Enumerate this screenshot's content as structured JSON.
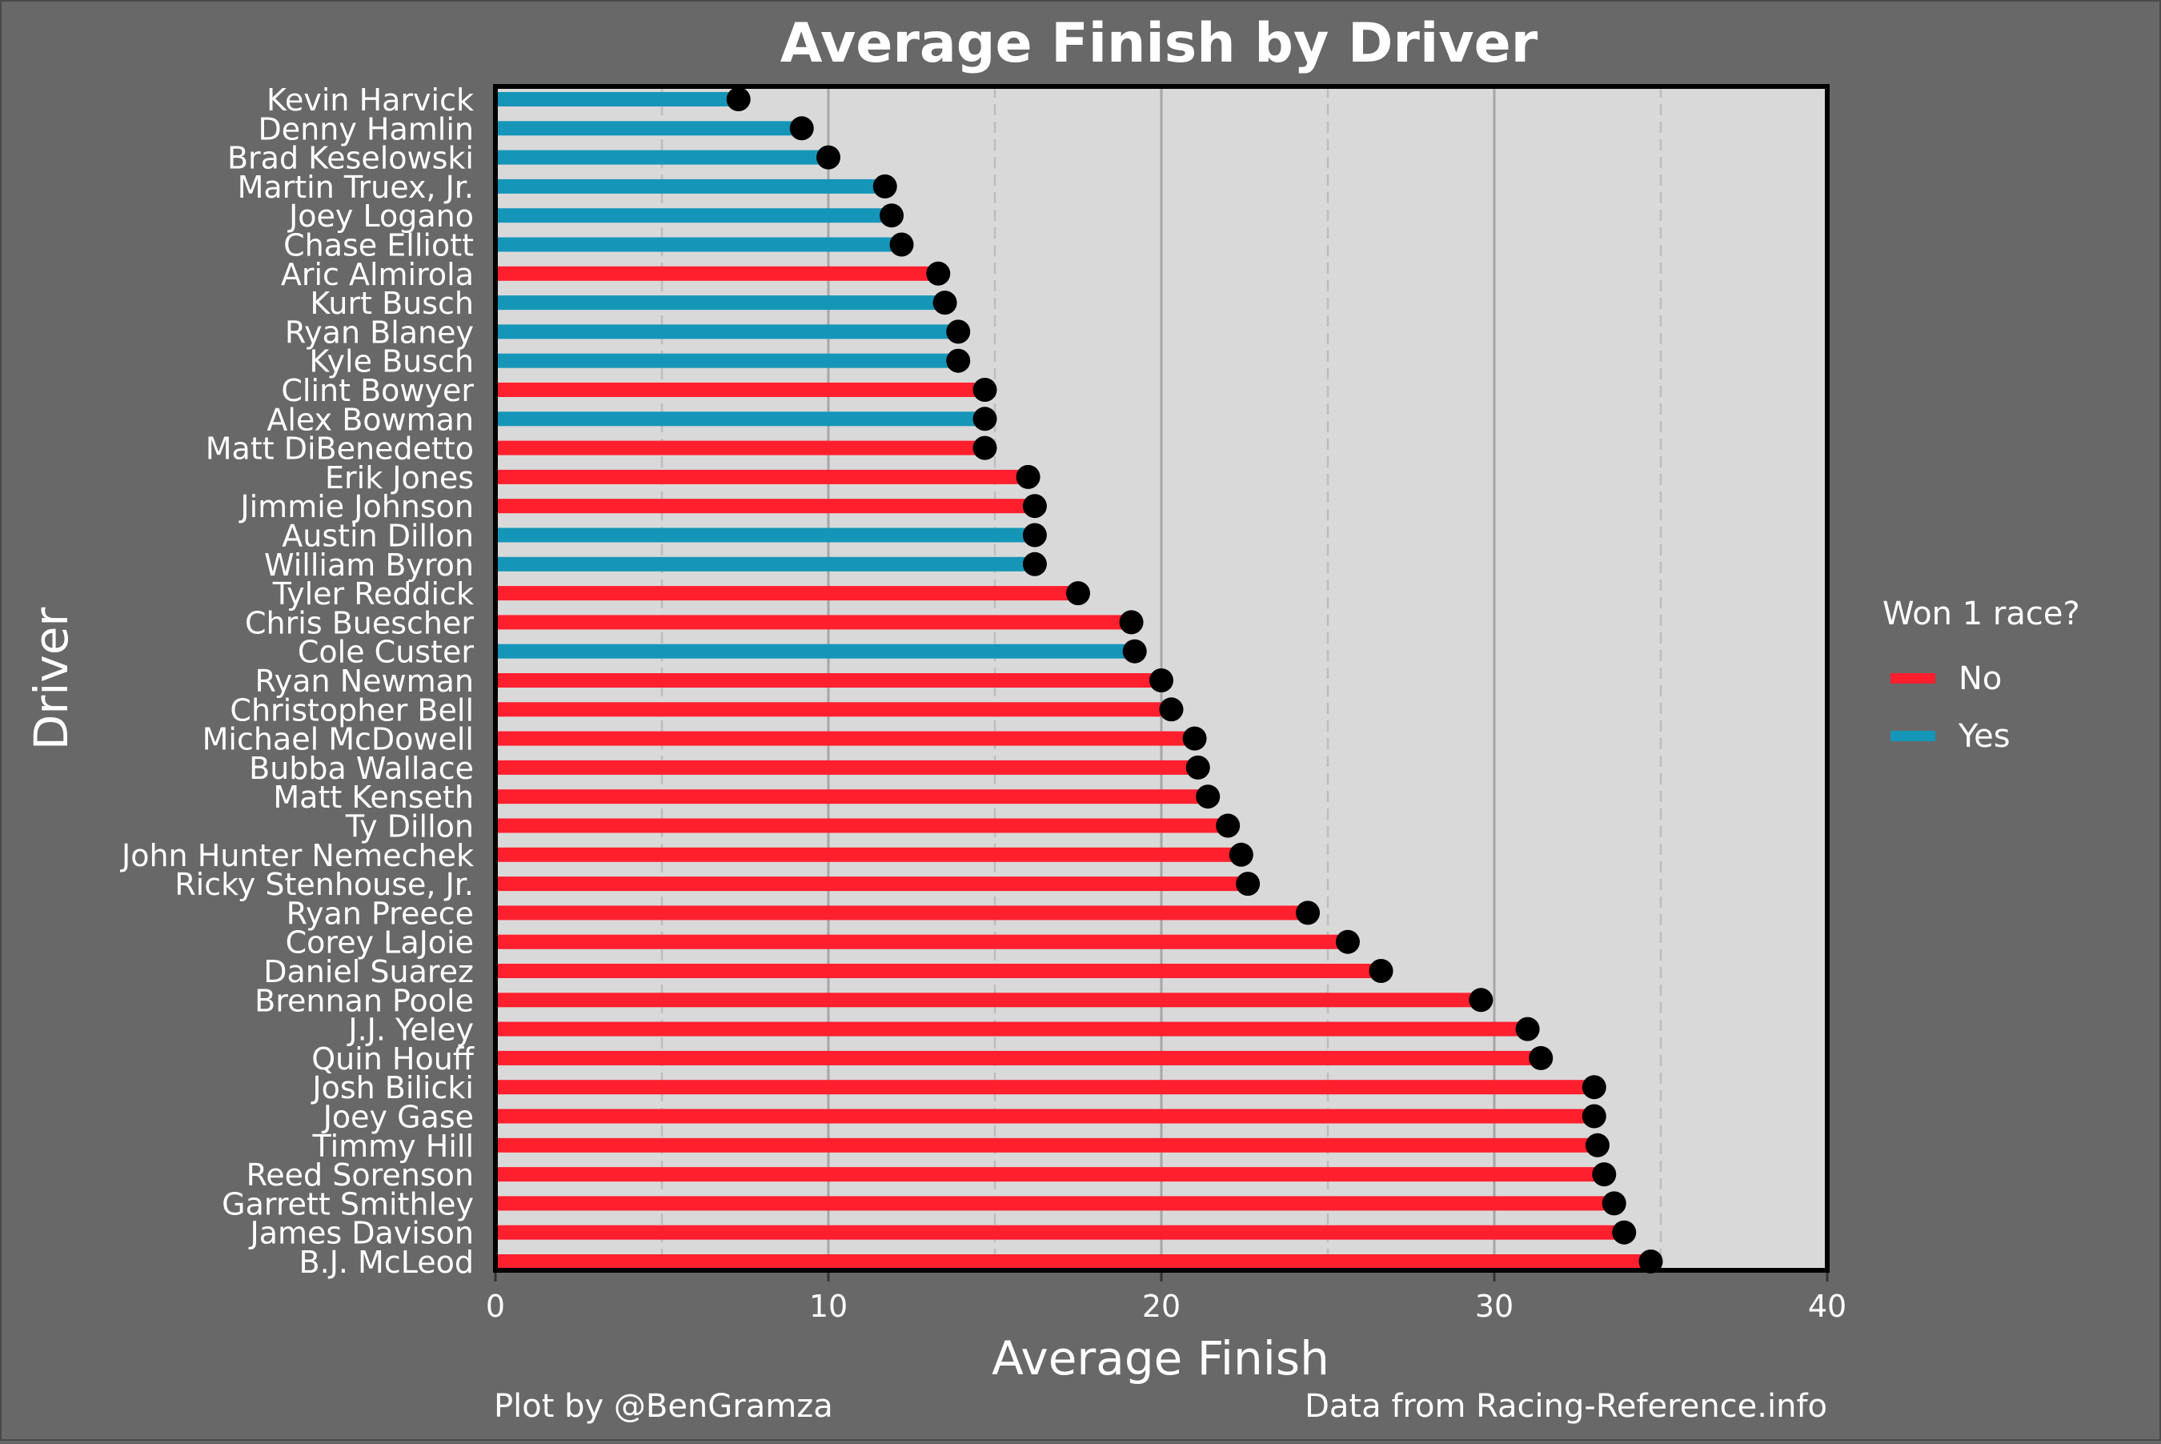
{
  "chart_data": {
    "type": "bar",
    "title": "Average Finish by Driver",
    "xlabel": "Average Finish",
    "ylabel": "Driver",
    "xlim": [
      0,
      40
    ],
    "xticks": [
      "0",
      "10",
      "20",
      "30",
      "40"
    ],
    "grid": true,
    "legend": {
      "title": "Won 1 race?",
      "placement": "right",
      "entries": [
        {
          "label": "No",
          "color": "#FF1F2D"
        },
        {
          "label": "Yes",
          "color": "#1596B8"
        }
      ]
    },
    "categories": [
      "Kevin Harvick",
      "Denny Hamlin",
      "Brad Keselowski",
      "Martin Truex, Jr.",
      "Joey Logano",
      "Chase Elliott",
      "Aric Almirola",
      "Kurt Busch",
      "Ryan Blaney",
      "Kyle Busch",
      "Clint Bowyer",
      "Alex Bowman",
      "Matt DiBenedetto",
      "Erik Jones",
      "Jimmie Johnson",
      "Austin Dillon",
      "William Byron",
      "Tyler Reddick",
      "Chris Buescher",
      "Cole Custer",
      "Ryan Newman",
      "Christopher Bell",
      "Michael McDowell",
      "Bubba Wallace",
      "Matt Kenseth",
      "Ty Dillon",
      "John Hunter Nemechek",
      "Ricky Stenhouse, Jr.",
      "Ryan Preece",
      "Corey LaJoie",
      "Daniel Suarez",
      "Brennan Poole",
      "J.J. Yeley",
      "Quin Houff",
      "Josh Bilicki",
      "Joey Gase",
      "Timmy Hill",
      "Reed Sorenson",
      "Garrett Smithley",
      "James Davison",
      "B.J. McLeod"
    ],
    "values": [
      7.3,
      9.2,
      10.0,
      11.7,
      11.9,
      12.2,
      13.3,
      13.5,
      13.9,
      13.9,
      14.7,
      14.7,
      14.7,
      16.0,
      16.2,
      16.2,
      16.2,
      17.5,
      19.1,
      19.2,
      20.0,
      20.3,
      21.0,
      21.1,
      21.4,
      22.0,
      22.4,
      22.6,
      24.4,
      25.6,
      26.6,
      29.6,
      31.0,
      31.4,
      33.0,
      33.0,
      33.1,
      33.3,
      33.6,
      33.9,
      34.7
    ],
    "won_race": [
      "Yes",
      "Yes",
      "Yes",
      "Yes",
      "Yes",
      "Yes",
      "No",
      "Yes",
      "Yes",
      "Yes",
      "No",
      "Yes",
      "No",
      "No",
      "No",
      "Yes",
      "Yes",
      "No",
      "No",
      "Yes",
      "No",
      "No",
      "No",
      "No",
      "No",
      "No",
      "No",
      "No",
      "No",
      "No",
      "No",
      "No",
      "No",
      "No",
      "No",
      "No",
      "No",
      "No",
      "No",
      "No",
      "No"
    ],
    "colors": {
      "No": "#FF1F2D",
      "Yes": "#1596B8",
      "point": "#000000",
      "panel": "#D9D9D9",
      "background": "#686868"
    }
  },
  "captions": {
    "left": "Plot by @BenGramza",
    "right": "Data from Racing-Reference.info"
  }
}
